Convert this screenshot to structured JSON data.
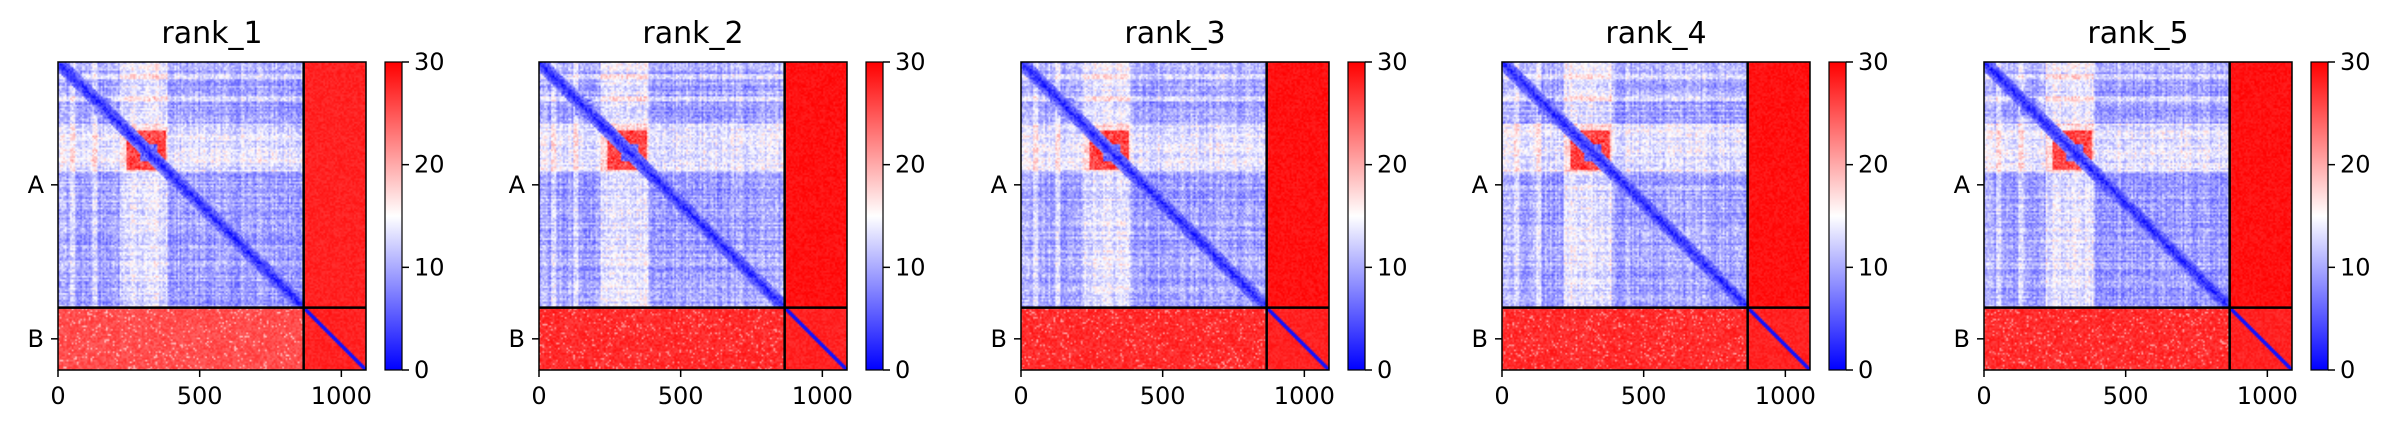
{
  "chart_data": [
    {
      "type": "heatmap",
      "title": "rank_1",
      "x_ticks": [
        "0",
        "500",
        "1000"
      ],
      "x_tick_values": [
        0,
        500,
        1000
      ],
      "xlim": [
        0,
        1087
      ],
      "y_ticks": [
        "A",
        "B"
      ],
      "chain_break": 867,
      "colorbar": {
        "ticks": [
          "0",
          "10",
          "20",
          "30"
        ],
        "range": [
          0,
          30
        ],
        "colormap": "bwr"
      },
      "block_means": {
        "A-A": 12,
        "A-B": 29,
        "B-A": 27,
        "B-B": 29
      }
    },
    {
      "type": "heatmap",
      "title": "rank_2",
      "x_ticks": [
        "0",
        "500",
        "1000"
      ],
      "x_tick_values": [
        0,
        500,
        1000
      ],
      "xlim": [
        0,
        1087
      ],
      "y_ticks": [
        "A",
        "B"
      ],
      "chain_break": 867,
      "colorbar": {
        "ticks": [
          "0",
          "10",
          "20",
          "30"
        ],
        "range": [
          0,
          30
        ],
        "colormap": "bwr"
      },
      "block_means": {
        "A-A": 12,
        "A-B": 30,
        "B-A": 29,
        "B-B": 29
      }
    },
    {
      "type": "heatmap",
      "title": "rank_3",
      "x_ticks": [
        "0",
        "500",
        "1000"
      ],
      "x_tick_values": [
        0,
        500,
        1000
      ],
      "xlim": [
        0,
        1087
      ],
      "y_ticks": [
        "A",
        "B"
      ],
      "chain_break": 867,
      "colorbar": {
        "ticks": [
          "0",
          "10",
          "20",
          "30"
        ],
        "range": [
          0,
          30
        ],
        "colormap": "bwr"
      },
      "block_means": {
        "A-A": 12,
        "A-B": 30,
        "B-A": 29,
        "B-B": 29
      }
    },
    {
      "type": "heatmap",
      "title": "rank_4",
      "x_ticks": [
        "0",
        "500",
        "1000"
      ],
      "x_tick_values": [
        0,
        500,
        1000
      ],
      "xlim": [
        0,
        1087
      ],
      "y_ticks": [
        "A",
        "B"
      ],
      "chain_break": 867,
      "colorbar": {
        "ticks": [
          "0",
          "10",
          "20",
          "30"
        ],
        "range": [
          0,
          30
        ],
        "colormap": "bwr"
      },
      "block_means": {
        "A-A": 12,
        "A-B": 30,
        "B-A": 29,
        "B-B": 29
      }
    },
    {
      "type": "heatmap",
      "title": "rank_5",
      "x_ticks": [
        "0",
        "500",
        "1000"
      ],
      "x_tick_values": [
        0,
        500,
        1000
      ],
      "xlim": [
        0,
        1087
      ],
      "y_ticks": [
        "A",
        "B"
      ],
      "chain_break": 867,
      "colorbar": {
        "ticks": [
          "0",
          "10",
          "20",
          "30"
        ],
        "range": [
          0,
          30
        ],
        "colormap": "bwr"
      },
      "block_means": {
        "A-A": 12,
        "A-B": 30,
        "B-A": 29,
        "B-B": 29
      }
    }
  ]
}
